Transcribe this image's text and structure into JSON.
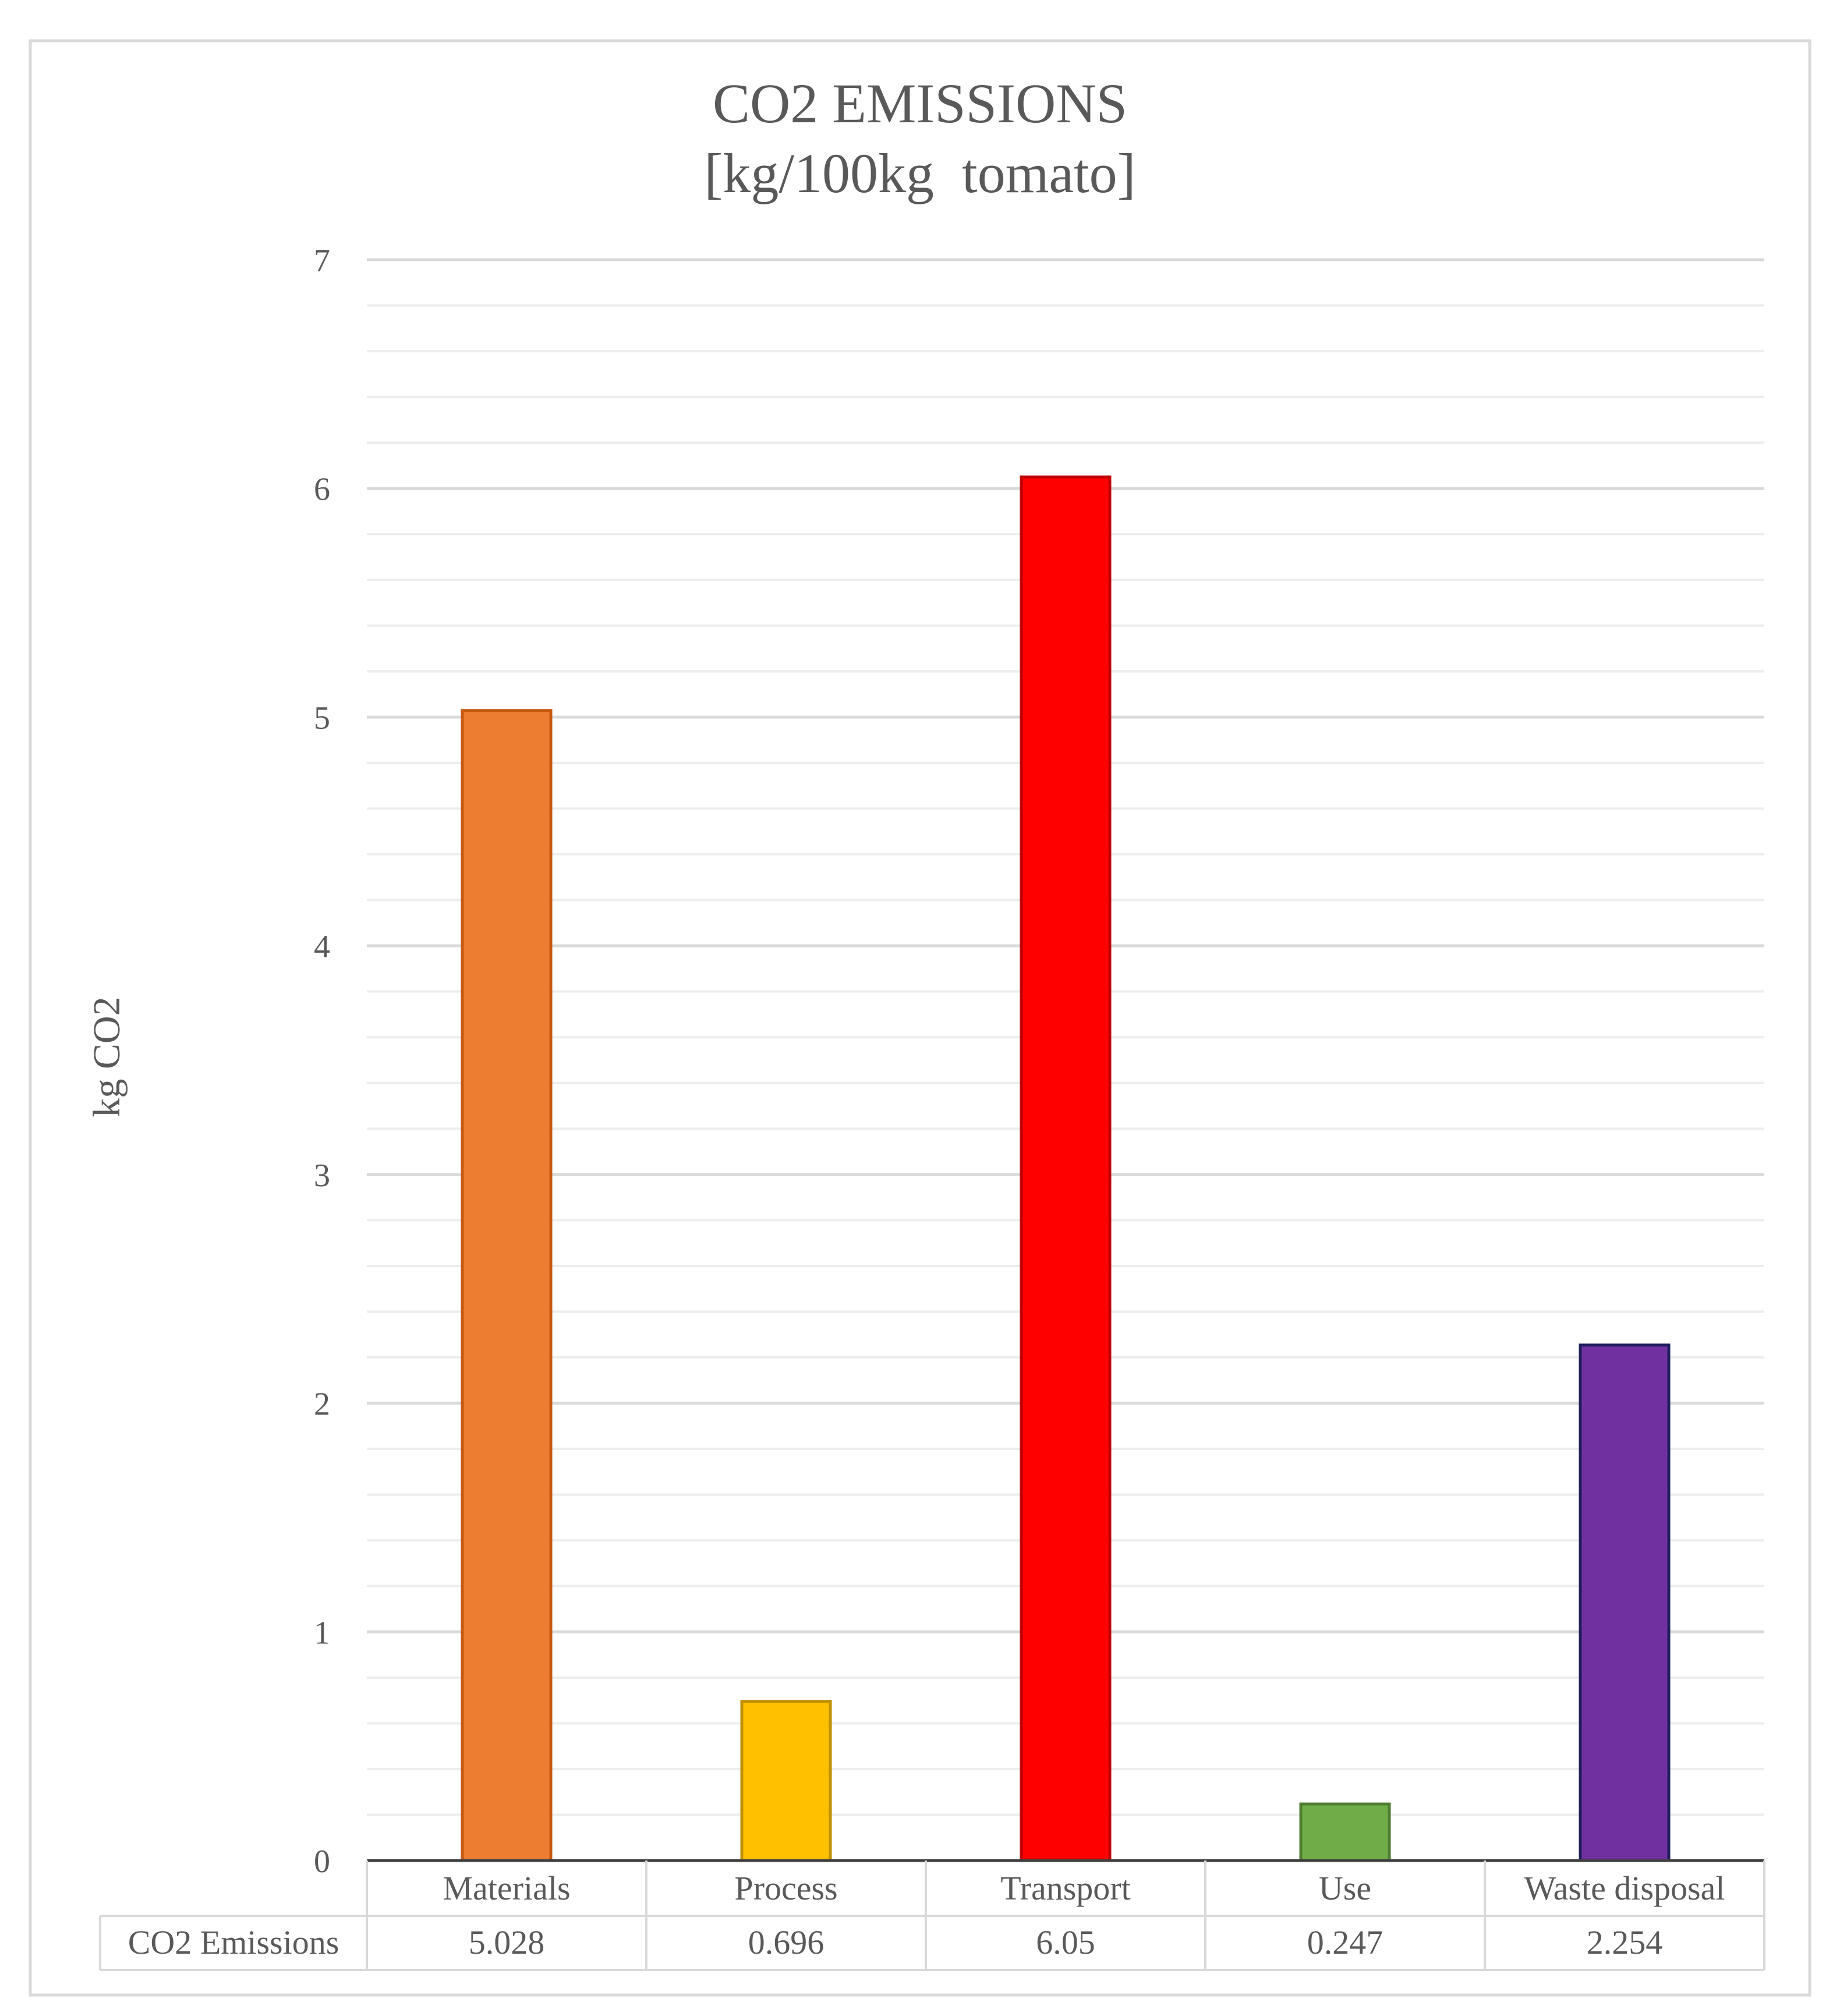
{
  "chart_data": {
    "type": "bar",
    "title": "CO2 EMISSIONS",
    "subtitle": "[kg/100kg  tomato]",
    "ylabel": "kg CO2",
    "xlabel": "",
    "ylim": [
      0,
      7
    ],
    "major_ticks": [
      0,
      1,
      2,
      3,
      4,
      5,
      6,
      7
    ],
    "minor_step": 0.2,
    "grid": true,
    "categories": [
      "Materials",
      "Process",
      "Transport",
      "Use",
      "Waste disposal"
    ],
    "series": [
      {
        "name": "CO2 Emissions",
        "values": [
          5.028,
          0.696,
          6.05,
          0.247,
          2.254
        ]
      }
    ],
    "table_labels": [
      "5.028",
      "0.696",
      "6.05",
      "0.247",
      "2.254"
    ],
    "colors": [
      "#ED7D31",
      "#FFC000",
      "#FF0000",
      "#70AD47",
      "#7030A0"
    ],
    "border_colors": [
      "#C55A11",
      "#BF9000",
      "#C00000",
      "#507E32",
      "#1F1F5F"
    ],
    "gridline_color": "#D9D9D9",
    "axis_color": "#404040",
    "frame_color": "#D9D9D9",
    "text_color": "#595959"
  }
}
